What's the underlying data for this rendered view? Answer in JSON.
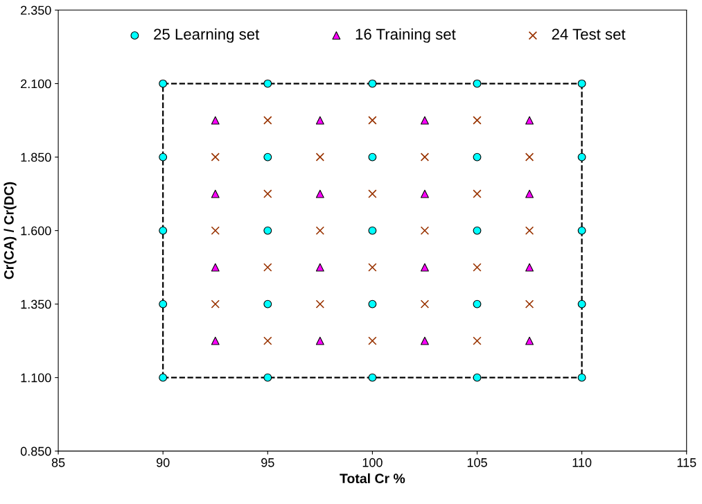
{
  "chart_data": {
    "type": "scatter",
    "xlabel": "Total Cr %",
    "ylabel": "Cr(CA) / Cr(DC)",
    "xlim": [
      85,
      115
    ],
    "xticks": [
      85,
      90,
      95,
      100,
      105,
      110,
      115
    ],
    "ylim": [
      0.85,
      2.35
    ],
    "yticks": [
      {
        "value": 0.85,
        "label": "0.850"
      },
      {
        "value": 1.1,
        "label": "1.100"
      },
      {
        "value": 1.35,
        "label": "1.350"
      },
      {
        "value": 1.6,
        "label": "1.600"
      },
      {
        "value": 1.85,
        "label": "1.850"
      },
      {
        "value": 2.1,
        "label": "2.100"
      },
      {
        "value": 2.35,
        "label": "2.350"
      }
    ],
    "grid": false,
    "legend": "top",
    "series": [
      {
        "type": "line",
        "color": "#000000",
        "line_style": "dashed",
        "x": [
          90,
          110
        ],
        "values": [
          2.1,
          2.1
        ]
      },
      {
        "type": "line",
        "color": "#000000",
        "line_style": "dashed",
        "x": [
          110,
          110
        ],
        "values": [
          2.1,
          1.1
        ]
      },
      {
        "type": "line",
        "color": "#000000",
        "line_style": "dashed",
        "x": [
          90,
          110
        ],
        "values": [
          1.1,
          1.1
        ]
      },
      {
        "type": "line",
        "color": "#000000",
        "line_style": "dashed",
        "x": [
          90,
          90
        ],
        "values": [
          1.1,
          2.1
        ]
      },
      {
        "name": "25 Learning set",
        "color": "#00ffff",
        "marker": "circle",
        "x": [
          90,
          95,
          100,
          105,
          110,
          90,
          95,
          100,
          105,
          110,
          90,
          95,
          100,
          105,
          110,
          90,
          95,
          100,
          105,
          110,
          90,
          95,
          100,
          105,
          110
        ],
        "values": [
          2.1,
          2.1,
          2.1,
          2.1,
          2.1,
          1.85,
          1.85,
          1.85,
          1.85,
          1.85,
          1.6,
          1.6,
          1.6,
          1.6,
          1.6,
          1.35,
          1.35,
          1.35,
          1.35,
          1.35,
          1.1,
          1.1,
          1.1,
          1.1,
          1.1
        ]
      },
      {
        "name": "16 Training set",
        "color": "#ff00ff",
        "marker": "triangle",
        "x": [
          92.5,
          97.5,
          102.5,
          107.5,
          92.5,
          97.5,
          102.5,
          107.5,
          92.5,
          97.5,
          102.5,
          107.5,
          92.5,
          97.5,
          102.5,
          107.5
        ],
        "values": [
          1.975,
          1.975,
          1.975,
          1.975,
          1.725,
          1.725,
          1.725,
          1.725,
          1.475,
          1.475,
          1.475,
          1.475,
          1.225,
          1.225,
          1.225,
          1.225
        ]
      },
      {
        "name": "24 Test set",
        "color": "#993300",
        "marker": "cross",
        "x": [
          95,
          100,
          105,
          92.5,
          97.5,
          102.5,
          107.5,
          95,
          100,
          105,
          92.5,
          97.5,
          102.5,
          107.5,
          95,
          100,
          105,
          92.5,
          97.5,
          102.5,
          107.5,
          95,
          100,
          105
        ],
        "values": [
          1.975,
          1.975,
          1.975,
          1.85,
          1.85,
          1.85,
          1.85,
          1.725,
          1.725,
          1.725,
          1.6,
          1.6,
          1.6,
          1.6,
          1.475,
          1.475,
          1.475,
          1.35,
          1.35,
          1.35,
          1.35,
          1.225,
          1.225,
          1.225
        ]
      }
    ]
  }
}
